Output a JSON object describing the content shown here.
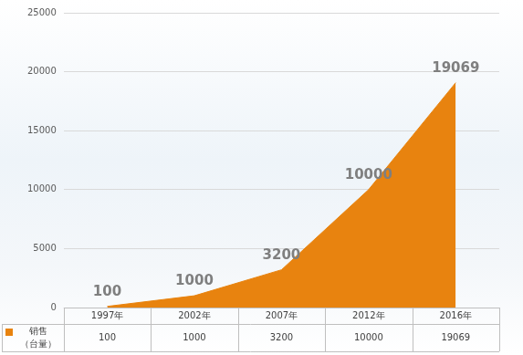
{
  "chart_data": {
    "type": "area",
    "categories": [
      "1997年",
      "2002年",
      "2007年",
      "2012年",
      "2016年"
    ],
    "series": [
      {
        "name": "销售（台量）",
        "color": "#e8830f",
        "values": [
          100,
          1000,
          3200,
          10000,
          19069
        ]
      }
    ],
    "ylim": [
      0,
      25000
    ],
    "yticks": [
      0,
      5000,
      10000,
      15000,
      20000,
      25000
    ],
    "grid": true,
    "data_labels": true
  }
}
